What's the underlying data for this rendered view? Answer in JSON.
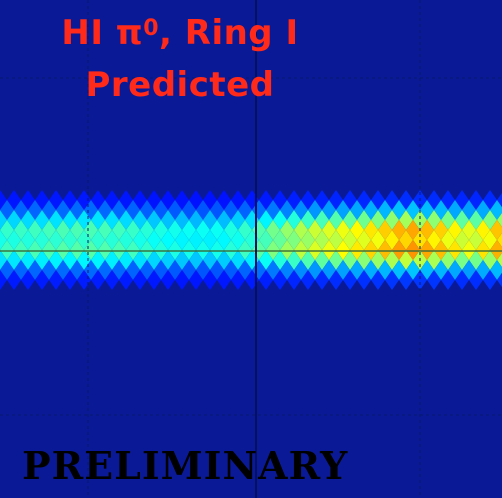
{
  "title_line1_main": "HI π",
  "title_line1_sup": "0",
  "title_line1_rest": ", Ring I",
  "title_line2": "Predicted",
  "watermark": "PRELIMINARY",
  "colors": {
    "background": "#0a1a96",
    "title": "#ff2a1a",
    "watermark": "#000000"
  },
  "chart_data": {
    "type": "heatmap",
    "colormap": "jet",
    "grid": true,
    "band": {
      "description_rows": "intensity profile across the band (top to bottom)",
      "profile": [
        0.05,
        0.2,
        0.42,
        0.6,
        0.55,
        0.62,
        0.45,
        0.2,
        0.06
      ],
      "intensity_along_x": [
        0.48,
        0.5,
        0.52,
        0.52,
        0.5,
        0.45,
        0.42,
        0.42,
        0.5,
        0.62,
        0.72,
        0.78,
        0.85,
        0.95,
        0.88,
        0.75,
        0.92
      ]
    }
  }
}
